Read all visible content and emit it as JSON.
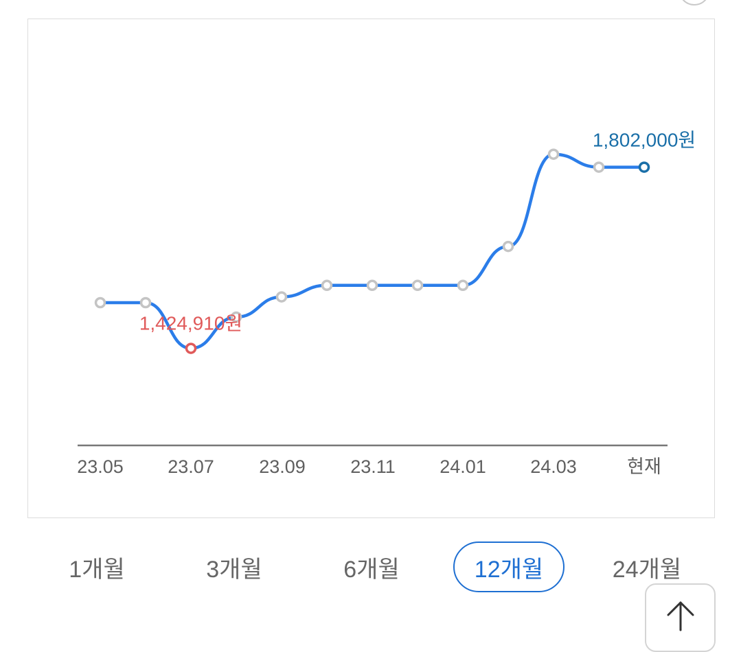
{
  "chart_data": {
    "type": "line",
    "x_tick_labels": [
      "23.05",
      "23.07",
      "23.09",
      "23.11",
      "24.01",
      "24.03",
      "현재"
    ],
    "points": [
      {
        "x": "23.05",
        "y": 1520000
      },
      {
        "x": "23.06",
        "y": 1520000
      },
      {
        "x": "23.07",
        "y": 1424910
      },
      {
        "x": "23.08",
        "y": 1490000
      },
      {
        "x": "23.09",
        "y": 1532000
      },
      {
        "x": "23.10",
        "y": 1556000
      },
      {
        "x": "23.11",
        "y": 1556000
      },
      {
        "x": "23.12",
        "y": 1556000
      },
      {
        "x": "24.01",
        "y": 1556000
      },
      {
        "x": "24.02",
        "y": 1637000
      },
      {
        "x": "24.03",
        "y": 1829000
      },
      {
        "x": "24.04",
        "y": 1802000
      },
      {
        "x": "현재",
        "y": 1802000
      }
    ],
    "annotations": {
      "min": {
        "index": 2,
        "label": "1,424,910원",
        "color": "#e05a5a"
      },
      "current": {
        "index": 12,
        "label": "1,802,000원",
        "color": "#1a6fa8"
      }
    },
    "y_range": [
      1070000,
      2110000
    ],
    "grid": false,
    "line_color": "#2b7de9",
    "marker_color": "#c4c4c4"
  },
  "period_tabs": {
    "items": [
      "1개월",
      "3개월",
      "6개월",
      "12개월",
      "24개월"
    ],
    "selected": "12개월"
  },
  "colors": {
    "accent": "#1e6fd2",
    "tab_text": "#666666"
  },
  "icons": {
    "scroll_top": "arrow-up-icon"
  }
}
